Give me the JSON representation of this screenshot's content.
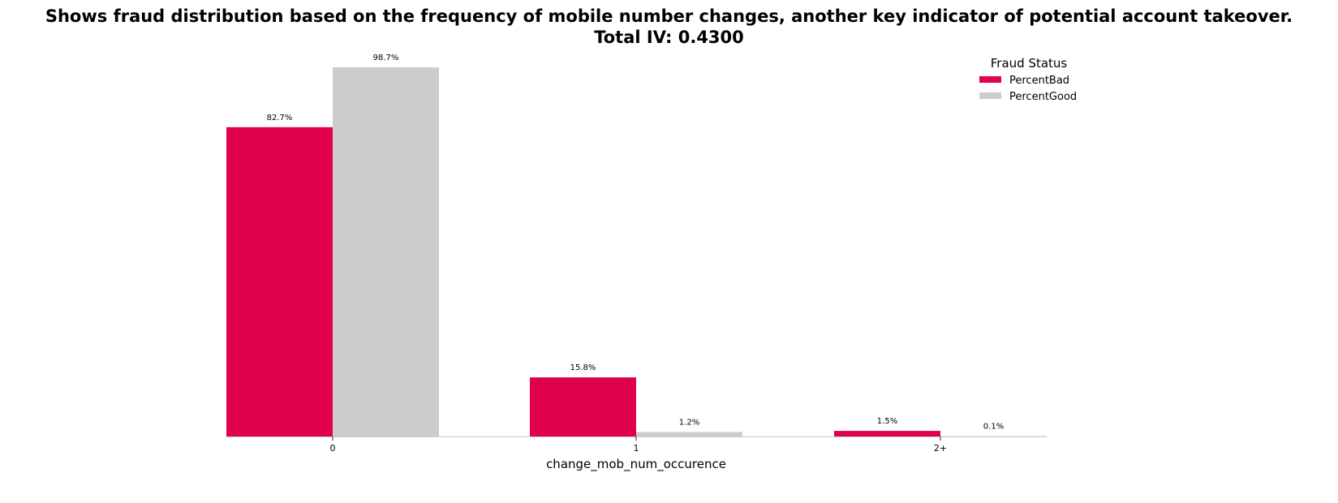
{
  "chart_data": {
    "type": "bar",
    "title_lines": [
      "Shows fraud distribution based on the frequency of mobile number changes, another key indicator of potential account takeover.",
      "Total IV: 0.4300"
    ],
    "xlabel": "change_mob_num_occurence",
    "ylabel": "",
    "categories": [
      "0",
      "1",
      "2+"
    ],
    "series": [
      {
        "name": "PercentBad",
        "values": [
          82.7,
          15.8,
          1.5
        ],
        "labels": [
          "82.7%",
          "15.8%",
          "1.5%"
        ],
        "color": "#e0004d"
      },
      {
        "name": "PercentGood",
        "values": [
          98.7,
          1.2,
          0.1
        ],
        "labels": [
          "98.7%",
          "1.2%",
          "0.1%"
        ],
        "color": "#cccccc"
      }
    ],
    "ylim": [
      0,
      100
    ],
    "grid": false,
    "legend": {
      "title": "Fraud Status",
      "placement": "top-right"
    }
  }
}
